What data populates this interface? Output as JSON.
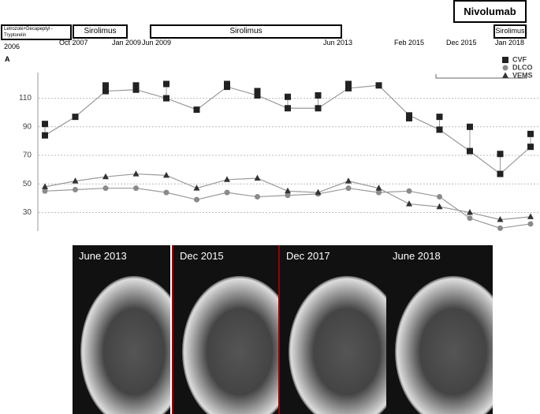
{
  "timeline": {
    "treatments": [
      "Letrozole+Decapeptyl  - Tryptorelin",
      "Sirolimus",
      "Sirolimus",
      "Nivolumab",
      "Sirolimus"
    ],
    "dates": [
      "2006",
      "Oct 2007",
      "Jan 2009",
      "Jun 2009",
      "Jun 2013",
      "Feb 2015",
      "Dec 2015",
      "Jan 2018"
    ]
  },
  "panel_label": "A",
  "chart_data": {
    "type": "line",
    "categories": [
      null,
      null,
      null,
      null,
      null,
      null,
      null,
      null,
      null,
      null,
      null,
      null,
      null,
      null,
      null,
      null,
      null
    ],
    "series": [
      {
        "name": "CVF",
        "color": "#222222",
        "marker": "square",
        "values": [
          84,
          97,
          115,
          116,
          110,
          102,
          118,
          112,
          103,
          103,
          117,
          119,
          98,
          88,
          73,
          57,
          76
        ],
        "values_alt": [
          92,
          null,
          119,
          119,
          120,
          null,
          120,
          115,
          111,
          112,
          120,
          null,
          96,
          97,
          90,
          71,
          85
        ]
      },
      {
        "name": "DLCO",
        "color": "#8a8a8a",
        "marker": "circle",
        "values": [
          45,
          46,
          47,
          47,
          44,
          39,
          44,
          41,
          42,
          43,
          47,
          44,
          45,
          41,
          26,
          19,
          22
        ]
      },
      {
        "name": "VEMS",
        "color": "#333333",
        "marker": "triangle",
        "values": [
          48,
          52,
          55,
          57,
          56,
          47,
          53,
          54,
          45,
          44,
          52,
          47,
          36,
          34,
          30,
          25,
          27
        ]
      }
    ],
    "ylim": [
      17,
      128
    ],
    "yticks": [
      30,
      50,
      70,
      90,
      110
    ],
    "grid": true,
    "legend": "upper right"
  },
  "ct_images": [
    "June 2013",
    "Dec 2015",
    "Dec 2017",
    "June 2018"
  ]
}
